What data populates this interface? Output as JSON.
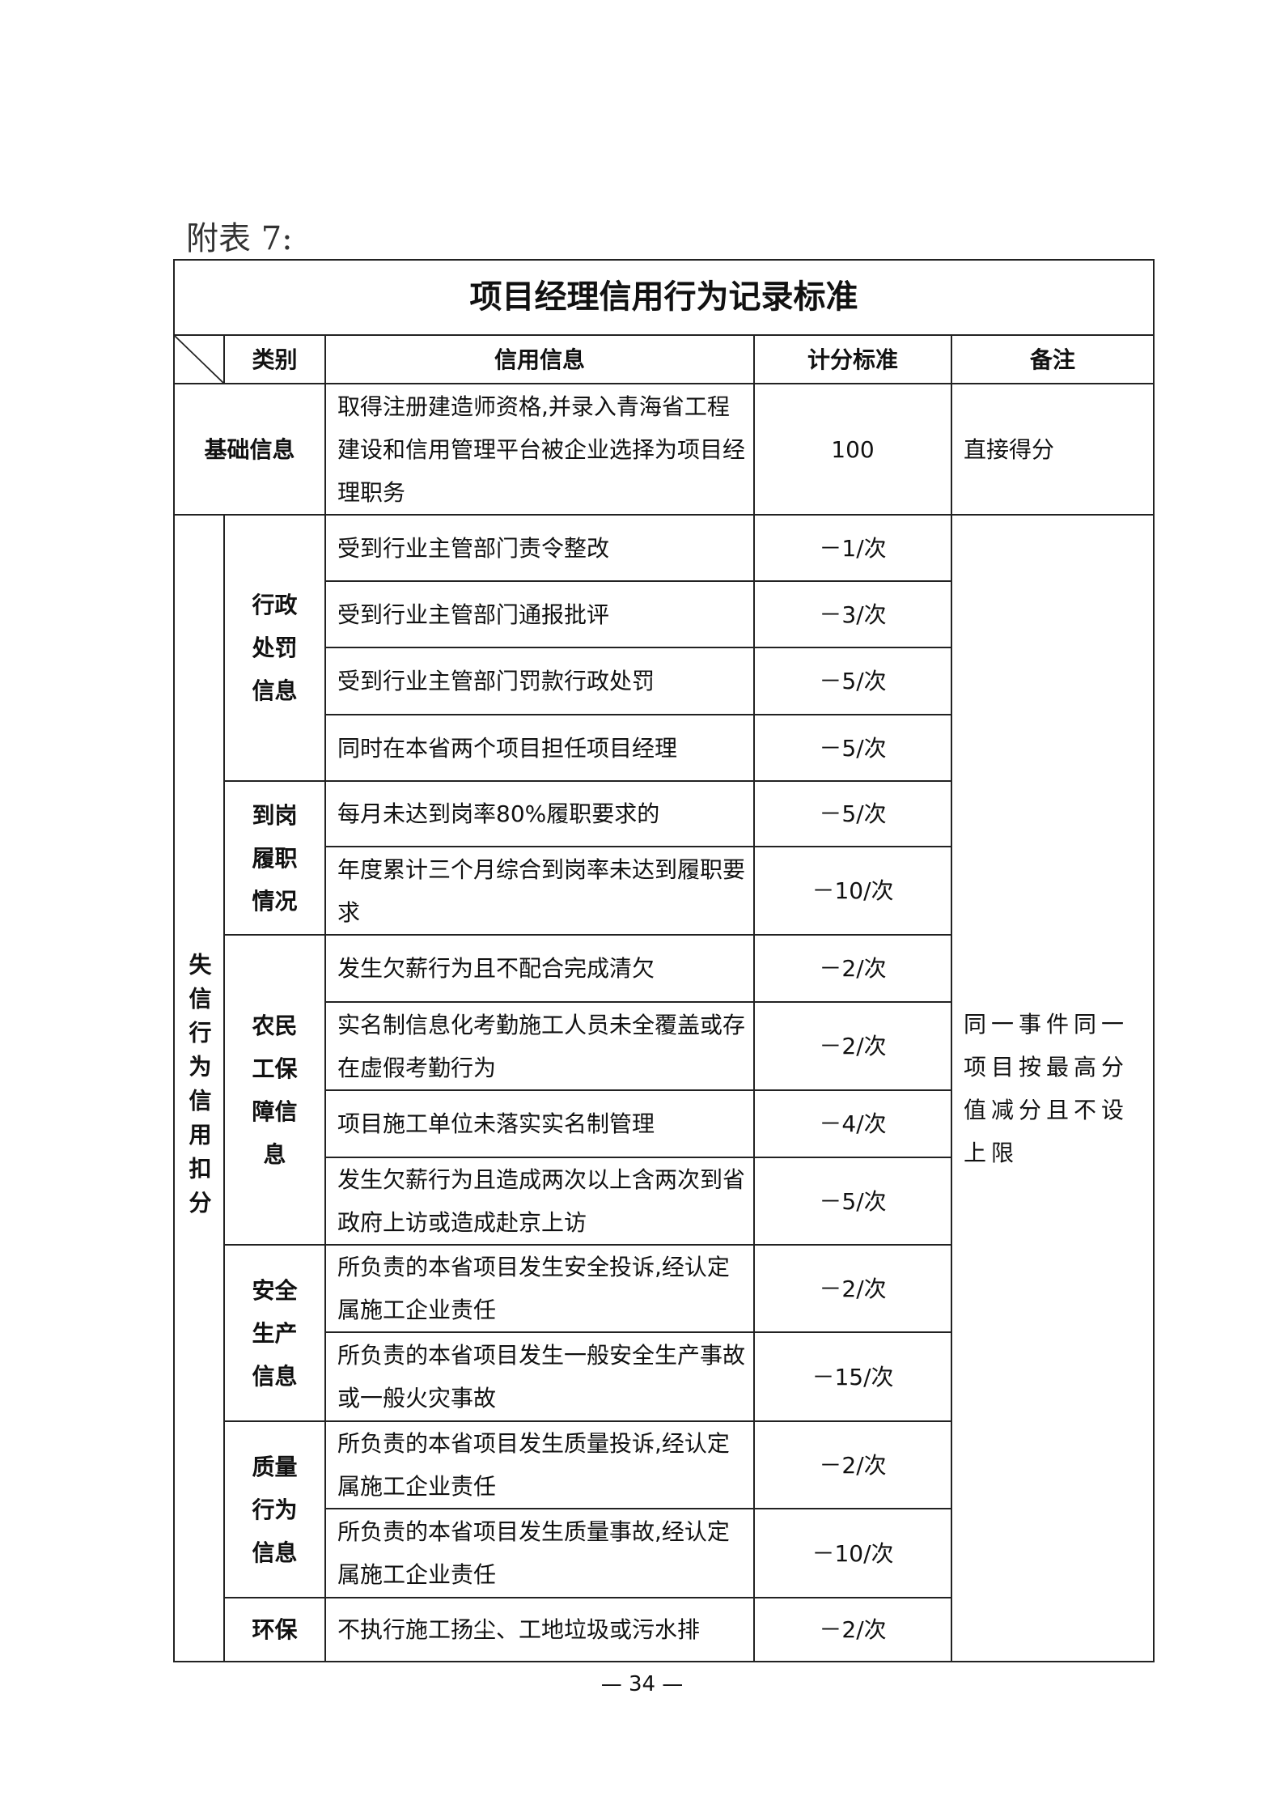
{
  "caption": "附表 7:",
  "title": "项目经理信用行为记录标准",
  "headers": {
    "category": "类别",
    "info": "信用信息",
    "score": "计分标准",
    "remark": "备注"
  },
  "basic": {
    "category": "基础信息",
    "info": "取得注册建造师资格,并录入青海省工程建设和信用管理平台被企业选择为项目经理职务",
    "score": "100",
    "remark": "直接得分"
  },
  "deduction": {
    "category": "失信行为信用扣分",
    "remark": "同一事件同一项目按最高分值减分且不设上限",
    "groups": [
      {
        "name": "行政处罚信息",
        "rows": [
          {
            "info": "受到行业主管部门责令整改",
            "score": "－1/次"
          },
          {
            "info": "受到行业主管部门通报批评",
            "score": "－3/次"
          },
          {
            "info": "受到行业主管部门罚款行政处罚",
            "score": "－5/次"
          },
          {
            "info": "同时在本省两个项目担任项目经理",
            "score": "－5/次"
          }
        ]
      },
      {
        "name": "到岗履职情况",
        "rows": [
          {
            "info": "每月未达到岗率80%履职要求的",
            "score": "－5/次"
          },
          {
            "info": "年度累计三个月综合到岗率未达到履职要求",
            "score": "－10/次"
          }
        ]
      },
      {
        "name": "农民工保障信息",
        "rows": [
          {
            "info": "发生欠薪行为且不配合完成清欠",
            "score": "－2/次"
          },
          {
            "info": "实名制信息化考勤施工人员未全覆盖或存在虚假考勤行为",
            "score": "－2/次"
          },
          {
            "info": "项目施工单位未落实实名制管理",
            "score": "－4/次"
          },
          {
            "info": "发生欠薪行为且造成两次以上含两次到省政府上访或造成赴京上访",
            "score": "－5/次"
          }
        ]
      },
      {
        "name": "安全生产信息",
        "rows": [
          {
            "info": "所负责的本省项目发生安全投诉,经认定属施工企业责任",
            "score": "－2/次"
          },
          {
            "info": "所负责的本省项目发生一般安全生产事故或一般火灾事故",
            "score": "－15/次"
          }
        ]
      },
      {
        "name": "质量行为信息",
        "rows": [
          {
            "info": "所负责的本省项目发生质量投诉,经认定属施工企业责任",
            "score": "－2/次"
          },
          {
            "info": "所负责的本省项目发生质量事故,经认定属施工企业责任",
            "score": "－10/次"
          }
        ]
      },
      {
        "name": "环保",
        "rows": [
          {
            "info": "不执行施工扬尘、工地垃圾或污水排",
            "score": "－2/次"
          }
        ]
      }
    ]
  },
  "page_number": "— 34 —"
}
